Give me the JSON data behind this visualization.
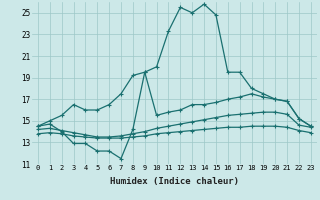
{
  "xlabel": "Humidex (Indice chaleur)",
  "xlim": [
    -0.5,
    23.5
  ],
  "ylim": [
    11,
    26
  ],
  "xticks": [
    0,
    1,
    2,
    3,
    4,
    5,
    6,
    7,
    8,
    9,
    10,
    11,
    12,
    13,
    14,
    15,
    16,
    17,
    18,
    19,
    20,
    21,
    22,
    23
  ],
  "yticks": [
    11,
    13,
    15,
    17,
    19,
    21,
    23,
    25
  ],
  "bg_color": "#cce8e8",
  "line_color": "#1a7070",
  "line1_x": [
    0,
    1,
    2,
    3,
    4,
    5,
    6,
    7,
    8,
    9,
    10,
    11,
    12,
    13,
    14,
    15,
    16,
    17,
    18,
    19,
    20,
    21,
    22,
    23
  ],
  "line1_y": [
    14.5,
    14.7,
    14.0,
    12.9,
    12.9,
    12.2,
    12.2,
    11.5,
    14.2,
    19.5,
    20.0,
    23.3,
    25.5,
    25.0,
    25.8,
    24.8,
    19.5,
    19.5,
    18.0,
    17.5,
    17.0,
    16.8,
    15.2,
    14.5
  ],
  "line2_x": [
    0,
    1,
    2,
    3,
    4,
    5,
    6,
    7,
    8,
    9,
    10,
    11,
    12,
    13,
    14,
    15,
    16,
    17,
    18,
    19,
    20,
    21,
    22,
    23
  ],
  "line2_y": [
    14.5,
    15.0,
    15.5,
    16.5,
    16.0,
    16.0,
    16.5,
    17.5,
    19.2,
    19.5,
    15.5,
    15.8,
    16.0,
    16.5,
    16.5,
    16.7,
    17.0,
    17.2,
    17.5,
    17.2,
    17.0,
    16.8,
    15.2,
    14.5
  ],
  "line3_x": [
    0,
    1,
    2,
    3,
    4,
    5,
    6,
    7,
    8,
    9,
    10,
    11,
    12,
    13,
    14,
    15,
    16,
    17,
    18,
    19,
    20,
    21,
    22,
    23
  ],
  "line3_y": [
    14.2,
    14.3,
    14.1,
    13.9,
    13.7,
    13.5,
    13.5,
    13.6,
    13.8,
    14.0,
    14.3,
    14.5,
    14.7,
    14.9,
    15.1,
    15.3,
    15.5,
    15.6,
    15.7,
    15.8,
    15.8,
    15.6,
    14.6,
    14.4
  ],
  "line4_x": [
    0,
    1,
    2,
    3,
    4,
    5,
    6,
    7,
    8,
    9,
    10,
    11,
    12,
    13,
    14,
    15,
    16,
    17,
    18,
    19,
    20,
    21,
    22,
    23
  ],
  "line4_y": [
    13.8,
    13.9,
    13.8,
    13.6,
    13.5,
    13.4,
    13.4,
    13.4,
    13.5,
    13.6,
    13.8,
    13.9,
    14.0,
    14.1,
    14.2,
    14.3,
    14.4,
    14.4,
    14.5,
    14.5,
    14.5,
    14.4,
    14.1,
    13.9
  ]
}
